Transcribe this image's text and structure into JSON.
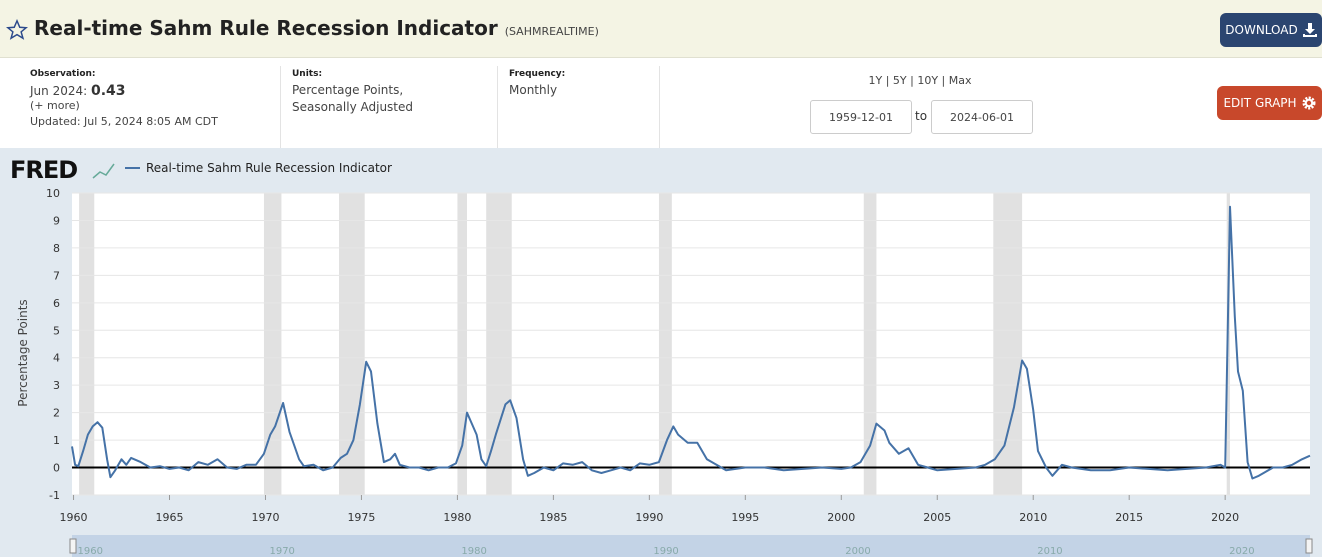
{
  "header": {
    "title": "Real-time Sahm Rule Recession Indicator",
    "series_id": "(SAHMREALTIME)",
    "download": "DOWNLOAD",
    "edit_graph": "EDIT GRAPH"
  },
  "info": {
    "observation_label": "Observation:",
    "observation_date": "Jun 2024:",
    "observation_value": "0.43",
    "more": "(+ more)",
    "updated": "Updated: Jul 5, 2024 8:05 AM CDT",
    "units_label": "Units:",
    "units_line1": "Percentage Points,",
    "units_line2": "Seasonally Adjusted",
    "frequency_label": "Frequency:",
    "frequency": "Monthly",
    "range_links": "1Y | 5Y | 10Y | Max",
    "start_date": "1959-12-01",
    "to": "to",
    "end_date": "2024-06-01"
  },
  "logo": "FRED",
  "chart_data": {
    "type": "line",
    "y_label": "Percentage Points",
    "grid": true,
    "xlim": [
      1959.92,
      2024.42
    ],
    "ylim": [
      -1,
      10
    ],
    "xticks": [
      1960,
      1965,
      1970,
      1975,
      1980,
      1985,
      1990,
      1995,
      2000,
      2005,
      2010,
      2015,
      2020
    ],
    "yticks": [
      -1,
      0,
      1,
      2,
      3,
      4,
      5,
      6,
      7,
      8,
      9,
      10
    ],
    "recessions": [
      {
        "start": 1960.29,
        "end": 1961.08
      },
      {
        "start": 1969.92,
        "end": 1970.83
      },
      {
        "start": 1973.83,
        "end": 1975.17
      },
      {
        "start": 1980.0,
        "end": 1980.5
      },
      {
        "start": 1981.5,
        "end": 1982.83
      },
      {
        "start": 1990.5,
        "end": 1991.17
      },
      {
        "start": 2001.17,
        "end": 2001.83
      },
      {
        "start": 2007.92,
        "end": 2009.42
      },
      {
        "start": 2020.08,
        "end": 2020.25
      }
    ],
    "recession_color": "#e1e1e1",
    "x": [
      1959.92,
      1960.08,
      1960.25,
      1960.5,
      1960.75,
      1961.0,
      1961.25,
      1961.5,
      1961.75,
      1961.92,
      1962.17,
      1962.5,
      1962.75,
      1963.0,
      1963.5,
      1964.0,
      1964.5,
      1965.0,
      1965.5,
      1966.0,
      1966.5,
      1967.0,
      1967.5,
      1968.0,
      1968.5,
      1969.0,
      1969.5,
      1969.92,
      1970.25,
      1970.5,
      1970.92,
      1971.25,
      1971.5,
      1971.75,
      1972.0,
      1972.5,
      1973.0,
      1973.5,
      1973.92,
      1974.25,
      1974.58,
      1974.92,
      1975.25,
      1975.5,
      1975.83,
      1976.17,
      1976.5,
      1976.75,
      1977.0,
      1977.5,
      1978.0,
      1978.5,
      1979.0,
      1979.5,
      1979.92,
      1980.25,
      1980.5,
      1980.75,
      1981.0,
      1981.25,
      1981.5,
      1981.75,
      1982.0,
      1982.5,
      1982.75,
      1983.08,
      1983.42,
      1983.67,
      1984.0,
      1984.5,
      1985.0,
      1985.5,
      1986.0,
      1986.5,
      1987.0,
      1987.5,
      1988.0,
      1988.5,
      1989.0,
      1989.5,
      1990.0,
      1990.5,
      1990.92,
      1991.25,
      1991.5,
      1992.0,
      1992.5,
      1993.0,
      1993.5,
      1994.0,
      1995.0,
      1996.0,
      1997.0,
      1998.0,
      1999.0,
      2000.0,
      2000.5,
      2001.0,
      2001.5,
      2001.83,
      2002.25,
      2002.5,
      2003.0,
      2003.5,
      2004.0,
      2004.5,
      2005.0,
      2006.0,
      2007.0,
      2007.5,
      2008.0,
      2008.5,
      2009.0,
      2009.42,
      2009.67,
      2010.0,
      2010.25,
      2010.67,
      2011.0,
      2011.5,
      2012.0,
      2013.0,
      2014.0,
      2015.0,
      2016.0,
      2017.0,
      2018.0,
      2019.0,
      2019.75,
      2020.0,
      2020.25,
      2020.5,
      2020.67,
      2020.92,
      2021.17,
      2021.42,
      2021.75,
      2022.0,
      2022.5,
      2023.0,
      2023.5,
      2024.0,
      2024.42
    ],
    "series": [
      {
        "name": "Real-time Sahm Rule Recession Indicator",
        "color": "#4572a7",
        "values": [
          0.77,
          0.1,
          0.05,
          0.6,
          1.2,
          1.5,
          1.65,
          1.45,
          0.3,
          -0.35,
          -0.1,
          0.3,
          0.1,
          0.35,
          0.2,
          0.0,
          0.05,
          -0.05,
          0.0,
          -0.1,
          0.2,
          0.1,
          0.3,
          0.0,
          -0.05,
          0.1,
          0.1,
          0.5,
          1.2,
          1.5,
          2.35,
          1.3,
          0.8,
          0.3,
          0.05,
          0.1,
          -0.1,
          0.0,
          0.35,
          0.5,
          1.0,
          2.3,
          3.85,
          3.5,
          1.6,
          0.2,
          0.3,
          0.5,
          0.1,
          0.0,
          0.0,
          -0.1,
          0.0,
          0.0,
          0.15,
          0.8,
          2.0,
          1.6,
          1.2,
          0.3,
          0.05,
          0.6,
          1.2,
          2.3,
          2.45,
          1.8,
          0.3,
          -0.3,
          -0.2,
          0.0,
          -0.1,
          0.15,
          0.1,
          0.2,
          -0.1,
          -0.2,
          -0.1,
          0.0,
          -0.1,
          0.15,
          0.1,
          0.2,
          1.0,
          1.5,
          1.2,
          0.9,
          0.9,
          0.3,
          0.1,
          -0.1,
          0.0,
          0.0,
          -0.1,
          -0.05,
          0.0,
          -0.05,
          0.0,
          0.2,
          0.8,
          1.6,
          1.35,
          0.9,
          0.5,
          0.7,
          0.1,
          0.0,
          -0.1,
          -0.05,
          0.0,
          0.1,
          0.3,
          0.8,
          2.2,
          3.9,
          3.6,
          2.1,
          0.6,
          0.0,
          -0.3,
          0.1,
          0.0,
          -0.1,
          -0.1,
          0.0,
          -0.05,
          -0.1,
          -0.05,
          0.0,
          0.1,
          0.0,
          9.5,
          5.5,
          3.5,
          2.8,
          0.2,
          -0.4,
          -0.3,
          -0.2,
          0.0,
          0.0,
          0.1,
          0.3,
          0.43
        ]
      }
    ],
    "navigator_ticks": [
      1960,
      1970,
      1980,
      1990,
      2000,
      2010,
      2020
    ]
  }
}
